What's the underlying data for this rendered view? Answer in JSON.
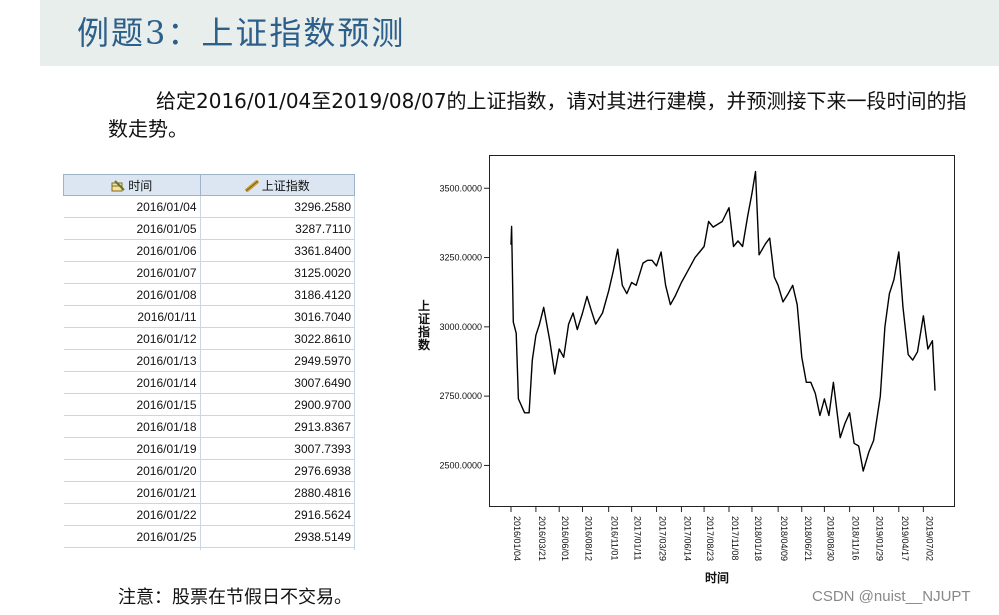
{
  "page": {
    "title": "例题3：上证指数预测",
    "description": "给定2016/01/04至2019/08/07的上证指数，请对其进行建模，并预测接下来一段时间的指数走势。",
    "note": "注意：股票在节假日不交易。",
    "watermark": "CSDN @nuist__NJUPT"
  },
  "table": {
    "headers": [
      "时间",
      "上证指数"
    ],
    "header_icons": [
      "date-ruler-icon",
      "scale-ruler-icon"
    ],
    "rows": [
      [
        "2016/01/04",
        "3296.2580"
      ],
      [
        "2016/01/05",
        "3287.7110"
      ],
      [
        "2016/01/06",
        "3361.8400"
      ],
      [
        "2016/01/07",
        "3125.0020"
      ],
      [
        "2016/01/08",
        "3186.4120"
      ],
      [
        "2016/01/11",
        "3016.7040"
      ],
      [
        "2016/01/12",
        "3022.8610"
      ],
      [
        "2016/01/13",
        "2949.5970"
      ],
      [
        "2016/01/14",
        "3007.6490"
      ],
      [
        "2016/01/15",
        "2900.9700"
      ],
      [
        "2016/01/18",
        "2913.8367"
      ],
      [
        "2016/01/19",
        "3007.7393"
      ],
      [
        "2016/01/20",
        "2976.6938"
      ],
      [
        "2016/01/21",
        "2880.4816"
      ],
      [
        "2016/01/22",
        "2916.5624"
      ],
      [
        "2016/01/25",
        "2938.5149"
      ],
      [
        "",
        ""
      ]
    ]
  },
  "chart_data": {
    "type": "line",
    "title": "",
    "xlabel": "时间",
    "ylabel": "上证指数",
    "ylim": [
      2350,
      3620
    ],
    "y_ticks": [
      2500,
      2750,
      3000,
      3250,
      3500
    ],
    "y_tick_labels": [
      "2500.0000",
      "2750.0000",
      "3000.0000",
      "3250.0000",
      "3500.0000"
    ],
    "x_tick_labels": [
      "2016/01/04",
      "2016/03/21",
      "2016/06/01",
      "2016/08/12",
      "2016/11/01",
      "2017/01/11",
      "2017/03/29",
      "2017/06/14",
      "2017/08/23",
      "2017/11/08",
      "2018/01/18",
      "2018/04/09",
      "2018/06/21",
      "2018/08/30",
      "2018/11/16",
      "2019/01/29",
      "2019/04/17",
      "2019/07/02"
    ],
    "grid": false,
    "line_color": "#000000",
    "series": [
      {
        "x": [
          "2016/01/04",
          "2016/01/06",
          "2016/01/11",
          "2016/01/20",
          "2016/01/27",
          "2016/02/15",
          "2016/02/29",
          "2016/03/10",
          "2016/03/21",
          "2016/04/01",
          "2016/04/14",
          "2016/05/03",
          "2016/05/18",
          "2016/06/01",
          "2016/06/15",
          "2016/06/30",
          "2016/07/14",
          "2016/07/27",
          "2016/08/12",
          "2016/08/26",
          "2016/09/08",
          "2016/09/22",
          "2016/10/13",
          "2016/11/01",
          "2016/11/15",
          "2016/11/29",
          "2016/12/13",
          "2016/12/27",
          "2017/01/11",
          "2017/01/25",
          "2017/02/15",
          "2017/03/01",
          "2017/03/15",
          "2017/03/29",
          "2017/04/12",
          "2017/04/26",
          "2017/05/11",
          "2017/05/25",
          "2017/06/14",
          "2017/06/28",
          "2017/07/12",
          "2017/07/26",
          "2017/08/09",
          "2017/08/23",
          "2017/09/06",
          "2017/09/20",
          "2017/10/18",
          "2017/11/08",
          "2017/11/22",
          "2017/12/06",
          "2017/12/20",
          "2018/01/05",
          "2018/01/18",
          "2018/01/29",
          "2018/02/09",
          "2018/03/01",
          "2018/03/14",
          "2018/03/28",
          "2018/04/09",
          "2018/04/24",
          "2018/05/10",
          "2018/05/24",
          "2018/06/07",
          "2018/06/21",
          "2018/07/05",
          "2018/07/19",
          "2018/08/02",
          "2018/08/16",
          "2018/08/30",
          "2018/09/13",
          "2018/09/27",
          "2018/10/18",
          "2018/11/01",
          "2018/11/16",
          "2018/11/30",
          "2018/12/14",
          "2018/12/28",
          "2019/01/15",
          "2019/01/29",
          "2019/02/19",
          "2019/03/05",
          "2019/03/19",
          "2019/04/02",
          "2019/04/17",
          "2019/04/30",
          "2019/05/16",
          "2019/05/30",
          "2019/06/14",
          "2019/07/02",
          "2019/07/16",
          "2019/07/30",
          "2019/08/07"
        ],
        "y": [
          3296,
          3362,
          3017,
          2977,
          2740,
          2690,
          2690,
          2880,
          2970,
          3010,
          3070,
          2950,
          2830,
          2920,
          2890,
          3010,
          3050,
          2990,
          3050,
          3110,
          3060,
          3010,
          3050,
          3130,
          3200,
          3280,
          3150,
          3120,
          3160,
          3150,
          3230,
          3240,
          3240,
          3220,
          3270,
          3150,
          3080,
          3110,
          3160,
          3190,
          3220,
          3250,
          3270,
          3290,
          3380,
          3360,
          3380,
          3430,
          3290,
          3310,
          3290,
          3400,
          3480,
          3560,
          3260,
          3300,
          3320,
          3180,
          3150,
          3090,
          3120,
          3150,
          3080,
          2890,
          2800,
          2800,
          2760,
          2680,
          2740,
          2680,
          2800,
          2600,
          2650,
          2690,
          2580,
          2570,
          2480,
          2550,
          2590,
          2750,
          3000,
          3120,
          3170,
          3270,
          3070,
          2900,
          2880,
          2910,
          3040,
          2920,
          2950,
          2770
        ]
      }
    ]
  }
}
